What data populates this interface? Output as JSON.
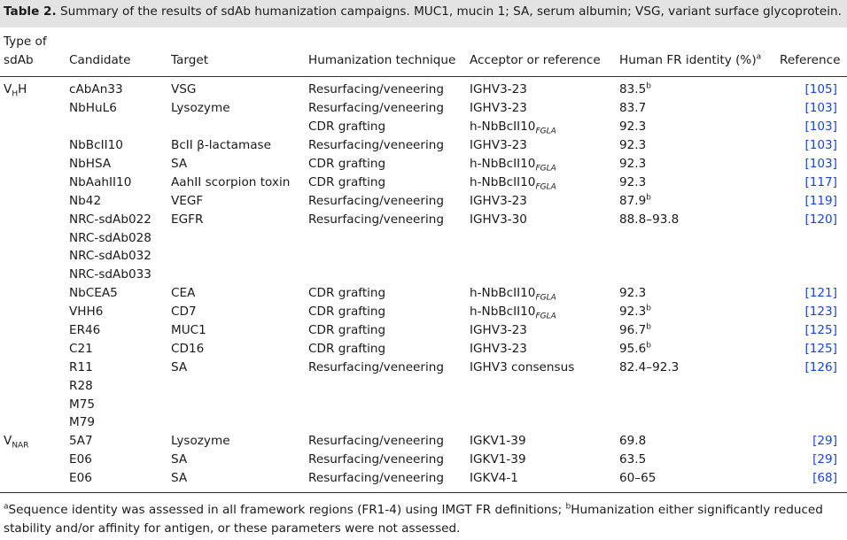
{
  "caption": {
    "label": "Table 2.",
    "text": " Summary of the results of sdAb humanization campaigns. MUC1, mucin 1; SA, serum albumin; VSG, variant surface glycoprotein."
  },
  "headers": {
    "type_line1": "Type of",
    "type_line2": "sdAb",
    "candidate": "Candidate",
    "target": "Target",
    "technique": "Humanization technique",
    "acceptor": "Acceptor or reference",
    "identity": "Human FR identity (%)",
    "identity_sup": "a",
    "reference": "Reference"
  },
  "rows": [
    {
      "type": "V",
      "type_sub": "H",
      "type_tail": "H",
      "candidate": "cAbAn33",
      "target": "VSG",
      "technique": "Resurfacing/veneering",
      "acceptor": "IGHV3-23",
      "acceptor_sub": "",
      "identity": "83.5",
      "identity_sup": "b",
      "reference": "[105]"
    },
    {
      "type": "",
      "type_sub": "",
      "type_tail": "",
      "candidate": "NbHuL6",
      "target": "Lysozyme",
      "technique": "Resurfacing/veneering",
      "acceptor": "IGHV3-23",
      "acceptor_sub": "",
      "identity": "83.7",
      "identity_sup": "",
      "reference": "[103]"
    },
    {
      "type": "",
      "type_sub": "",
      "type_tail": "",
      "candidate": "",
      "target": "",
      "technique": "CDR grafting",
      "acceptor": "h-NbBcII10",
      "acceptor_sub": "FGLA",
      "identity": "92.3",
      "identity_sup": "",
      "reference": "[103]"
    },
    {
      "type": "",
      "type_sub": "",
      "type_tail": "",
      "candidate": "NbBcII10",
      "target": "BcII β-lactamase",
      "technique": "Resurfacing/veneering",
      "acceptor": "IGHV3-23",
      "acceptor_sub": "",
      "identity": "92.3",
      "identity_sup": "",
      "reference": "[103]"
    },
    {
      "type": "",
      "type_sub": "",
      "type_tail": "",
      "candidate": "NbHSA",
      "target": "SA",
      "technique": "CDR grafting",
      "acceptor": "h-NbBcII10",
      "acceptor_sub": "FGLA",
      "identity": "92.3",
      "identity_sup": "",
      "reference": "[103]"
    },
    {
      "type": "",
      "type_sub": "",
      "type_tail": "",
      "candidate": "NbAahII10",
      "target": "AahII scorpion toxin",
      "technique": "CDR grafting",
      "acceptor": "h-NbBcII10",
      "acceptor_sub": "FGLA",
      "identity": "92.3",
      "identity_sup": "",
      "reference": "[117]"
    },
    {
      "type": "",
      "type_sub": "",
      "type_tail": "",
      "candidate": "Nb42",
      "target": "VEGF",
      "technique": "Resurfacing/veneering",
      "acceptor": "IGHV3-23",
      "acceptor_sub": "",
      "identity": "87.9",
      "identity_sup": "b",
      "reference": "[119]"
    },
    {
      "type": "",
      "type_sub": "",
      "type_tail": "",
      "candidate": "NRC-sdAb022",
      "target": "EGFR",
      "technique": "Resurfacing/veneering",
      "acceptor": "IGHV3-30",
      "acceptor_sub": "",
      "identity": "88.8–93.8",
      "identity_sup": "",
      "reference": "[120]"
    },
    {
      "type": "",
      "type_sub": "",
      "type_tail": "",
      "candidate": "NRC-sdAb028",
      "target": "",
      "technique": "",
      "acceptor": "",
      "acceptor_sub": "",
      "identity": "",
      "identity_sup": "",
      "reference": ""
    },
    {
      "type": "",
      "type_sub": "",
      "type_tail": "",
      "candidate": "NRC-sdAb032",
      "target": "",
      "technique": "",
      "acceptor": "",
      "acceptor_sub": "",
      "identity": "",
      "identity_sup": "",
      "reference": ""
    },
    {
      "type": "",
      "type_sub": "",
      "type_tail": "",
      "candidate": "NRC-sdAb033",
      "target": "",
      "technique": "",
      "acceptor": "",
      "acceptor_sub": "",
      "identity": "",
      "identity_sup": "",
      "reference": ""
    },
    {
      "type": "",
      "type_sub": "",
      "type_tail": "",
      "candidate": "NbCEA5",
      "target": "CEA",
      "technique": "CDR grafting",
      "acceptor": "h-NbBcII10",
      "acceptor_sub": "FGLA",
      "identity": "92.3",
      "identity_sup": "",
      "reference": "[121]"
    },
    {
      "type": "",
      "type_sub": "",
      "type_tail": "",
      "candidate": "VHH6",
      "target": "CD7",
      "technique": "CDR grafting",
      "acceptor": "h-NbBcII10",
      "acceptor_sub": "FGLA",
      "identity": "92.3",
      "identity_sup": "b",
      "reference": "[123]"
    },
    {
      "type": "",
      "type_sub": "",
      "type_tail": "",
      "candidate": "ER46",
      "target": "MUC1",
      "technique": "CDR grafting",
      "acceptor": "IGHV3-23",
      "acceptor_sub": "",
      "identity": "96.7",
      "identity_sup": "b",
      "reference": "[125]"
    },
    {
      "type": "",
      "type_sub": "",
      "type_tail": "",
      "candidate": "C21",
      "target": "CD16",
      "technique": "CDR grafting",
      "acceptor": "IGHV3-23",
      "acceptor_sub": "",
      "identity": "95.6",
      "identity_sup": "b",
      "reference": "[125]"
    },
    {
      "type": "",
      "type_sub": "",
      "type_tail": "",
      "candidate": "R11",
      "target": "SA",
      "technique": "Resurfacing/veneering",
      "acceptor": "IGHV3 consensus",
      "acceptor_sub": "",
      "identity": "82.4–92.3",
      "identity_sup": "",
      "reference": "[126]"
    },
    {
      "type": "",
      "type_sub": "",
      "type_tail": "",
      "candidate": "R28",
      "target": "",
      "technique": "",
      "acceptor": "",
      "acceptor_sub": "",
      "identity": "",
      "identity_sup": "",
      "reference": ""
    },
    {
      "type": "",
      "type_sub": "",
      "type_tail": "",
      "candidate": "M75",
      "target": "",
      "technique": "",
      "acceptor": "",
      "acceptor_sub": "",
      "identity": "",
      "identity_sup": "",
      "reference": ""
    },
    {
      "type": "",
      "type_sub": "",
      "type_tail": "",
      "candidate": "M79",
      "target": "",
      "technique": "",
      "acceptor": "",
      "acceptor_sub": "",
      "identity": "",
      "identity_sup": "",
      "reference": ""
    },
    {
      "type": "V",
      "type_sub": "NAR",
      "type_tail": "",
      "candidate": "5A7",
      "target": "Lysozyme",
      "technique": "Resurfacing/veneering",
      "acceptor": "IGKV1-39",
      "acceptor_sub": "",
      "identity": "69.8",
      "identity_sup": "",
      "reference": "[29]"
    },
    {
      "type": "",
      "type_sub": "",
      "type_tail": "",
      "candidate": "E06",
      "target": "SA",
      "technique": "Resurfacing/veneering",
      "acceptor": "IGKV1-39",
      "acceptor_sub": "",
      "identity": "63.5",
      "identity_sup": "",
      "reference": "[29]"
    },
    {
      "type": "",
      "type_sub": "",
      "type_tail": "",
      "candidate": "E06",
      "target": "SA",
      "technique": "Resurfacing/veneering",
      "acceptor": "IGKV4-1",
      "acceptor_sub": "",
      "identity": "60–65",
      "identity_sup": "",
      "reference": "[68]"
    }
  ],
  "footnote": {
    "a_mark": "a",
    "a_text": "Sequence identity was assessed in all framework regions (FR1-4) using IMGT FR definitions; ",
    "b_mark": "b",
    "b_text": "Humanization either significantly reduced stability and/or affinity for antigen, or these parameters were not assessed."
  },
  "colors": {
    "caption_bg": "#e3e3e3",
    "reference_link": "#1a44d6",
    "text": "#1a1a1a"
  }
}
